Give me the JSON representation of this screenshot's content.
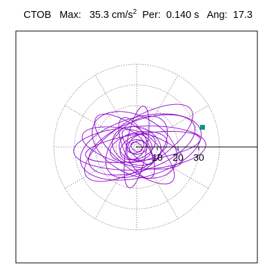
{
  "header": {
    "station": "CTOB",
    "max_label": "Max:",
    "max_value": "35.3 cm/s",
    "max_exp": "2",
    "per_label": "Per:",
    "per_value": "0.140 s",
    "ang_label": "Ang:",
    "ang_value": "17.3"
  },
  "chart_data": {
    "type": "polar-orbit",
    "radial_ticks": [
      10,
      20,
      30
    ],
    "rmax": 40,
    "grid": true,
    "grid_angle_step_deg": 30,
    "colors": {
      "trace": "#8b00cc",
      "end_marker": "#009977",
      "grid": "#777777",
      "axis": "#000000"
    },
    "trace_ellipses": [
      {
        "cx": 1.5,
        "cy": -0.5,
        "a": 32.0,
        "b": 10.5,
        "rot": 3
      },
      {
        "cx": 2.5,
        "cy": 1.0,
        "a": 27.0,
        "b": 12.0,
        "rot": 20
      },
      {
        "cx": -2.0,
        "cy": -0.5,
        "a": 25.0,
        "b": 8.5,
        "rot": -14
      },
      {
        "cx": 1.0,
        "cy": 2.0,
        "a": 30.0,
        "b": 11.5,
        "rot": 32
      },
      {
        "cx": -1.0,
        "cy": 1.0,
        "a": 22.0,
        "b": 14.0,
        "rot": -28
      },
      {
        "cx": 3.0,
        "cy": 0.0,
        "a": 28.0,
        "b": 6.5,
        "rot": 8
      },
      {
        "cx": 0.0,
        "cy": 0.0,
        "a": 18.0,
        "b": 11.0,
        "rot": 45
      },
      {
        "cx": -1.0,
        "cy": -1.0,
        "a": 24.0,
        "b": 9.0,
        "rot": -40
      },
      {
        "cx": 1.0,
        "cy": 0.0,
        "a": 14.0,
        "b": 7.0,
        "rot": 12
      },
      {
        "cx": 0.0,
        "cy": 0.5,
        "a": 12.0,
        "b": 9.0,
        "rot": -18
      },
      {
        "cx": 0.5,
        "cy": 0.0,
        "a": 9.0,
        "b": 5.5,
        "rot": 25
      },
      {
        "cx": -0.5,
        "cy": 0.0,
        "a": 8.0,
        "b": 6.5,
        "rot": -10
      },
      {
        "cx": 0.0,
        "cy": 0.0,
        "a": 6.5,
        "b": 4.0,
        "rot": 60
      },
      {
        "cx": 0.0,
        "cy": 0.0,
        "a": 5.0,
        "b": 3.5,
        "rot": 0
      },
      {
        "cx": 0.0,
        "cy": 0.0,
        "a": 4.0,
        "b": 2.5,
        "rot": 35
      },
      {
        "cx": 0.0,
        "cy": 0.0,
        "a": 3.0,
        "b": 2.0,
        "rot": -35
      },
      {
        "cx": 0.5,
        "cy": 0.0,
        "a": 10.5,
        "b": 4.0,
        "rot": -50
      },
      {
        "cx": 0.0,
        "cy": -0.5,
        "a": 16.0,
        "b": 6.0,
        "rot": -65
      },
      {
        "cx": 0.0,
        "cy": 0.0,
        "a": 20.0,
        "b": 5.0,
        "rot": 80
      },
      {
        "cx": 2.0,
        "cy": 0.0,
        "a": 30.0,
        "b": 14.5,
        "rot": 15
      }
    ],
    "trace_end": [
      31.8,
      9.5
    ]
  }
}
